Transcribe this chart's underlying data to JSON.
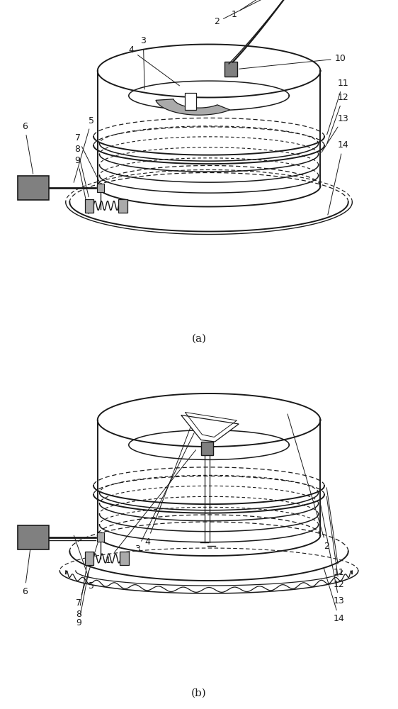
{
  "line_color": "#1a1a1a",
  "gray_fill": "#808080",
  "light_gray": "#aaaaaa",
  "fig_width": 5.62,
  "fig_height": 10.0,
  "dpi": 100,
  "label_a": "(a)",
  "label_b": "(b)"
}
